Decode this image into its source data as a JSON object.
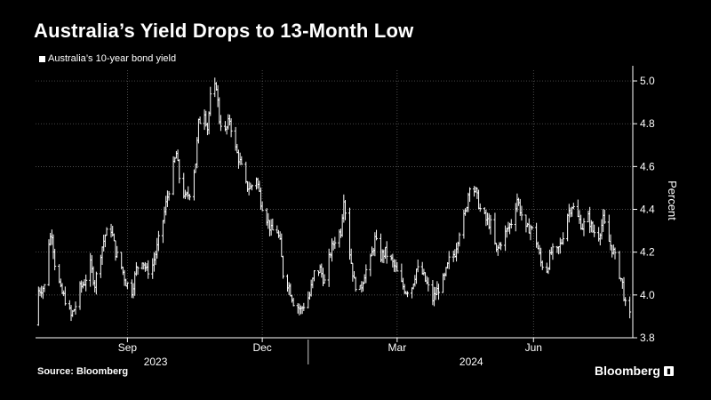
{
  "title": "Australia’s Yield Drops to 13-Month Low",
  "source": "Source: Bloomberg",
  "brand": {
    "name": "Bloomberg",
    "icon": "bloomberg-chart-icon"
  },
  "colors": {
    "background": "#000000",
    "series": "#ffffff",
    "grid": "#6b6b6b",
    "text": "#ffffff"
  },
  "chart_data": {
    "type": "ohlc",
    "series_name": "Australia’s 10-year bond yield",
    "ylabel": "Percent",
    "ylim": [
      3.8,
      5.05
    ],
    "yticks": [
      3.8,
      4.0,
      4.2,
      4.4,
      4.6,
      4.8,
      5.0
    ],
    "xlim": [
      "2023-07-01",
      "2024-08-07"
    ],
    "x_month_ticks": [
      {
        "label": "Sep",
        "date": "2023-09-01"
      },
      {
        "label": "Dec",
        "date": "2023-12-01"
      },
      {
        "label": "Mar",
        "date": "2024-03-01"
      },
      {
        "label": "Jun",
        "date": "2024-06-01"
      }
    ],
    "x_year_labels": [
      {
        "label": "2023",
        "center": "2023-09-20"
      },
      {
        "label": "2024",
        "center": "2024-04-20"
      }
    ],
    "year_divider": "2024-01-01",
    "grid": true,
    "legend_position": "top-left",
    "approx_path": [
      [
        "2023-07-01",
        3.86
      ],
      [
        "2023-07-03",
        4.02
      ],
      [
        "2023-07-07",
        4.04
      ],
      [
        "2023-07-10",
        4.25
      ],
      [
        "2023-07-12",
        4.29
      ],
      [
        "2023-07-14",
        4.15
      ],
      [
        "2023-07-18",
        4.02
      ],
      [
        "2023-07-21",
        3.98
      ],
      [
        "2023-07-25",
        3.9
      ],
      [
        "2023-07-28",
        3.95
      ],
      [
        "2023-07-31",
        4.03
      ],
      [
        "2023-08-03",
        4.06
      ],
      [
        "2023-08-07",
        4.14
      ],
      [
        "2023-08-10",
        4.05
      ],
      [
        "2023-08-14",
        4.2
      ],
      [
        "2023-08-17",
        4.28
      ],
      [
        "2023-08-21",
        4.31
      ],
      [
        "2023-08-24",
        4.2
      ],
      [
        "2023-08-28",
        4.13
      ],
      [
        "2023-08-31",
        4.06
      ],
      [
        "2023-09-04",
        4.02
      ],
      [
        "2023-09-07",
        4.12
      ],
      [
        "2023-09-11",
        4.17
      ],
      [
        "2023-09-14",
        4.11
      ],
      [
        "2023-09-18",
        4.14
      ],
      [
        "2023-09-21",
        4.22
      ],
      [
        "2023-09-25",
        4.35
      ],
      [
        "2023-09-28",
        4.46
      ],
      [
        "2023-10-02",
        4.6
      ],
      [
        "2023-10-04",
        4.66
      ],
      [
        "2023-10-06",
        4.55
      ],
      [
        "2023-10-10",
        4.45
      ],
      [
        "2023-10-13",
        4.48
      ],
      [
        "2023-10-17",
        4.62
      ],
      [
        "2023-10-19",
        4.8
      ],
      [
        "2023-10-23",
        4.86
      ],
      [
        "2023-10-25",
        4.78
      ],
      [
        "2023-10-27",
        4.92
      ],
      [
        "2023-10-31",
        4.98
      ],
      [
        "2023-11-02",
        4.82
      ],
      [
        "2023-11-06",
        4.76
      ],
      [
        "2023-11-09",
        4.82
      ],
      [
        "2023-11-13",
        4.68
      ],
      [
        "2023-11-16",
        4.62
      ],
      [
        "2023-11-20",
        4.51
      ],
      [
        "2023-11-23",
        4.5
      ],
      [
        "2023-11-27",
        4.55
      ],
      [
        "2023-11-30",
        4.44
      ],
      [
        "2023-12-04",
        4.36
      ],
      [
        "2023-12-07",
        4.3
      ],
      [
        "2023-12-11",
        4.3
      ],
      [
        "2023-12-13",
        4.24
      ],
      [
        "2023-12-15",
        4.1
      ],
      [
        "2023-12-19",
        4.04
      ],
      [
        "2023-12-22",
        3.97
      ],
      [
        "2023-12-27",
        3.93
      ],
      [
        "2024-01-02",
        4.0
      ],
      [
        "2024-01-05",
        4.1
      ],
      [
        "2024-01-09",
        4.12
      ],
      [
        "2024-01-12",
        4.06
      ],
      [
        "2024-01-16",
        4.2
      ],
      [
        "2024-01-19",
        4.26
      ],
      [
        "2024-01-23",
        4.3
      ],
      [
        "2024-01-25",
        4.46
      ],
      [
        "2024-01-29",
        4.2
      ],
      [
        "2024-02-01",
        4.06
      ],
      [
        "2024-02-05",
        4.02
      ],
      [
        "2024-02-08",
        4.1
      ],
      [
        "2024-02-12",
        4.16
      ],
      [
        "2024-02-15",
        4.26
      ],
      [
        "2024-02-19",
        4.18
      ],
      [
        "2024-02-22",
        4.2
      ],
      [
        "2024-02-26",
        4.16
      ],
      [
        "2024-02-29",
        4.12
      ],
      [
        "2024-03-04",
        4.05
      ],
      [
        "2024-03-07",
        4.02
      ],
      [
        "2024-03-11",
        4.04
      ],
      [
        "2024-03-14",
        4.12
      ],
      [
        "2024-03-18",
        4.1
      ],
      [
        "2024-03-21",
        4.05
      ],
      [
        "2024-03-25",
        3.98
      ],
      [
        "2024-03-28",
        4.02
      ],
      [
        "2024-04-02",
        4.08
      ],
      [
        "2024-04-05",
        4.16
      ],
      [
        "2024-04-09",
        4.2
      ],
      [
        "2024-04-12",
        4.3
      ],
      [
        "2024-04-16",
        4.38
      ],
      [
        "2024-04-19",
        4.52
      ],
      [
        "2024-04-23",
        4.48
      ],
      [
        "2024-04-26",
        4.4
      ],
      [
        "2024-04-30",
        4.35
      ],
      [
        "2024-05-03",
        4.33
      ],
      [
        "2024-05-07",
        4.2
      ],
      [
        "2024-05-10",
        4.25
      ],
      [
        "2024-05-14",
        4.3
      ],
      [
        "2024-05-17",
        4.34
      ],
      [
        "2024-05-21",
        4.45
      ],
      [
        "2024-05-23",
        4.4
      ],
      [
        "2024-05-27",
        4.3
      ],
      [
        "2024-05-30",
        4.32
      ],
      [
        "2024-06-03",
        4.25
      ],
      [
        "2024-06-06",
        4.15
      ],
      [
        "2024-06-10",
        4.12
      ],
      [
        "2024-06-13",
        4.2
      ],
      [
        "2024-06-17",
        4.2
      ],
      [
        "2024-06-20",
        4.25
      ],
      [
        "2024-06-24",
        4.38
      ],
      [
        "2024-06-27",
        4.42
      ],
      [
        "2024-07-01",
        4.36
      ],
      [
        "2024-07-04",
        4.32
      ],
      [
        "2024-07-08",
        4.36
      ],
      [
        "2024-07-11",
        4.3
      ],
      [
        "2024-07-15",
        4.28
      ],
      [
        "2024-07-18",
        4.35
      ],
      [
        "2024-07-22",
        4.25
      ],
      [
        "2024-07-25",
        4.2
      ],
      [
        "2024-07-29",
        4.1
      ],
      [
        "2024-07-31",
        4.05
      ],
      [
        "2024-08-02",
        3.95
      ],
      [
        "2024-08-05",
        3.9
      ]
    ]
  }
}
